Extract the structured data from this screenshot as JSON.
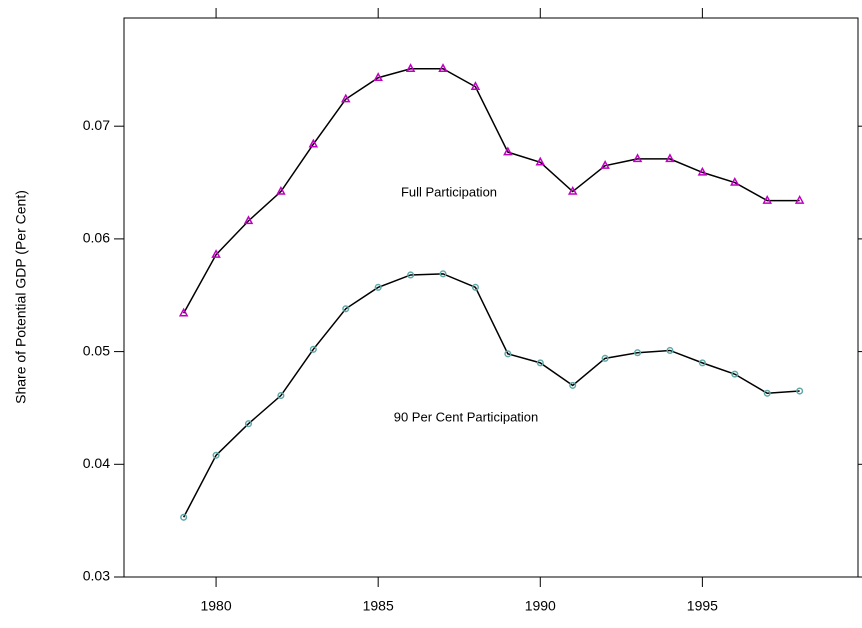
{
  "chart_data": {
    "type": "line",
    "y_label": "Share of Potential GDP (Per Cent)",
    "x": [
      1979,
      1980,
      1981,
      1982,
      1983,
      1984,
      1985,
      1986,
      1987,
      1988,
      1989,
      1990,
      1991,
      1992,
      1993,
      1994,
      1995,
      1996,
      1997,
      1998
    ],
    "series": [
      {
        "name": "Full Participation",
        "color": "#c000c0",
        "marker": "triangle",
        "values": [
          0.0534,
          0.0586,
          0.0616,
          0.0642,
          0.0684,
          0.0724,
          0.0743,
          0.0751,
          0.0751,
          0.0735,
          0.0677,
          0.0668,
          0.0642,
          0.0665,
          0.0671,
          0.0671,
          0.0659,
          0.065,
          0.0634,
          0.0634
        ]
      },
      {
        "name": "90 Per Cent Participation",
        "color": "#5fa8a8",
        "marker": "circle",
        "values": [
          0.0353,
          0.0408,
          0.0436,
          0.0461,
          0.0502,
          0.0538,
          0.0557,
          0.0568,
          0.0569,
          0.0557,
          0.0498,
          0.049,
          0.047,
          0.0494,
          0.0499,
          0.0501,
          0.049,
          0.048,
          0.0463,
          0.0465
        ]
      }
    ],
    "xlim": [
      1977.16,
      1999.8
    ],
    "xticks": [
      1980,
      1985,
      1990,
      1995
    ],
    "ylim": [
      0.03,
      0.0796
    ],
    "yticks": [
      0.03,
      0.04,
      0.05,
      0.06,
      0.07
    ],
    "grid": false
  }
}
